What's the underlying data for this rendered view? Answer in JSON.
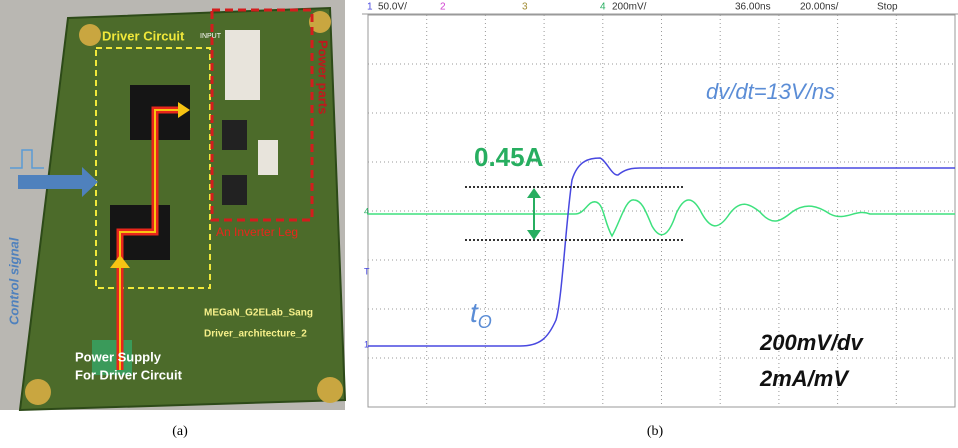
{
  "panel_a": {
    "driver_label": "Driver Circuit",
    "power_label": "Power parts",
    "control_label": "Control signal",
    "inverter_label": "An Inverter Leg",
    "input_label": "INPUT",
    "board_text_1": "MEGaN_G2ELab_Sang",
    "board_text_2": "Driver_architecture_2",
    "supply_line_1": "Power Supply",
    "supply_line_2": "For Driver Circuit",
    "caption": "(a)"
  },
  "panel_b": {
    "header": [
      "1",
      "50.0V/",
      "2",
      "3",
      "4",
      "200mV/",
      "36.00ns",
      "20.00ns/",
      "Stop"
    ],
    "slope_label": "dv/dt=13V/ns",
    "current_label": "0.45A",
    "time_label": "t",
    "time_subscript": "O",
    "scale_line_1": "200mV/dv",
    "scale_line_2": "2mA/mV",
    "marker_4": "4",
    "marker_t": "T",
    "marker_1": "1",
    "caption": "(b)"
  }
}
